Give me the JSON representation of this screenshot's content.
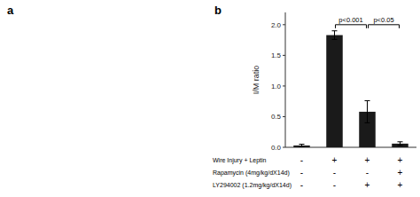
{
  "chart_data": {
    "type": "bar",
    "categories": [
      null,
      null,
      null,
      null
    ],
    "values": [
      0.03,
      1.83,
      0.58,
      0.06
    ],
    "errors": [
      0.02,
      0.07,
      0.18,
      0.03
    ],
    "color": "#1a1a1a",
    "ylabel": "I/M ratio",
    "ylim": [
      0,
      2.2
    ],
    "yticks": [
      {
        "value": 0.0,
        "label": "0.0"
      },
      {
        "value": 0.5,
        "label": "0.5"
      },
      {
        "value": 1.0,
        "label": "1.0"
      },
      {
        "value": 1.5,
        "label": "1.5"
      },
      {
        "value": 2.0,
        "label": "2.0"
      }
    ],
    "annotations": [
      {
        "text": "p<0.001",
        "from": 1,
        "to": 2,
        "y": 2.0
      },
      {
        "text": "p<0.05",
        "from": 2,
        "to": 3,
        "y": 2.0
      }
    ],
    "panel_labels": [
      "a",
      "b"
    ],
    "rows": [
      {
        "label": "Wire Injury + Leptin",
        "signs": [
          "-",
          "+",
          "+",
          "+"
        ]
      },
      {
        "label": "Rapamycin (4mg/kg/dX14d)",
        "signs": [
          "-",
          "-",
          "-",
          "+"
        ]
      },
      {
        "label": "LY294002 (1.2mg/kg/dX14d)",
        "signs": [
          "-",
          "-",
          "+",
          "+"
        ]
      }
    ]
  }
}
